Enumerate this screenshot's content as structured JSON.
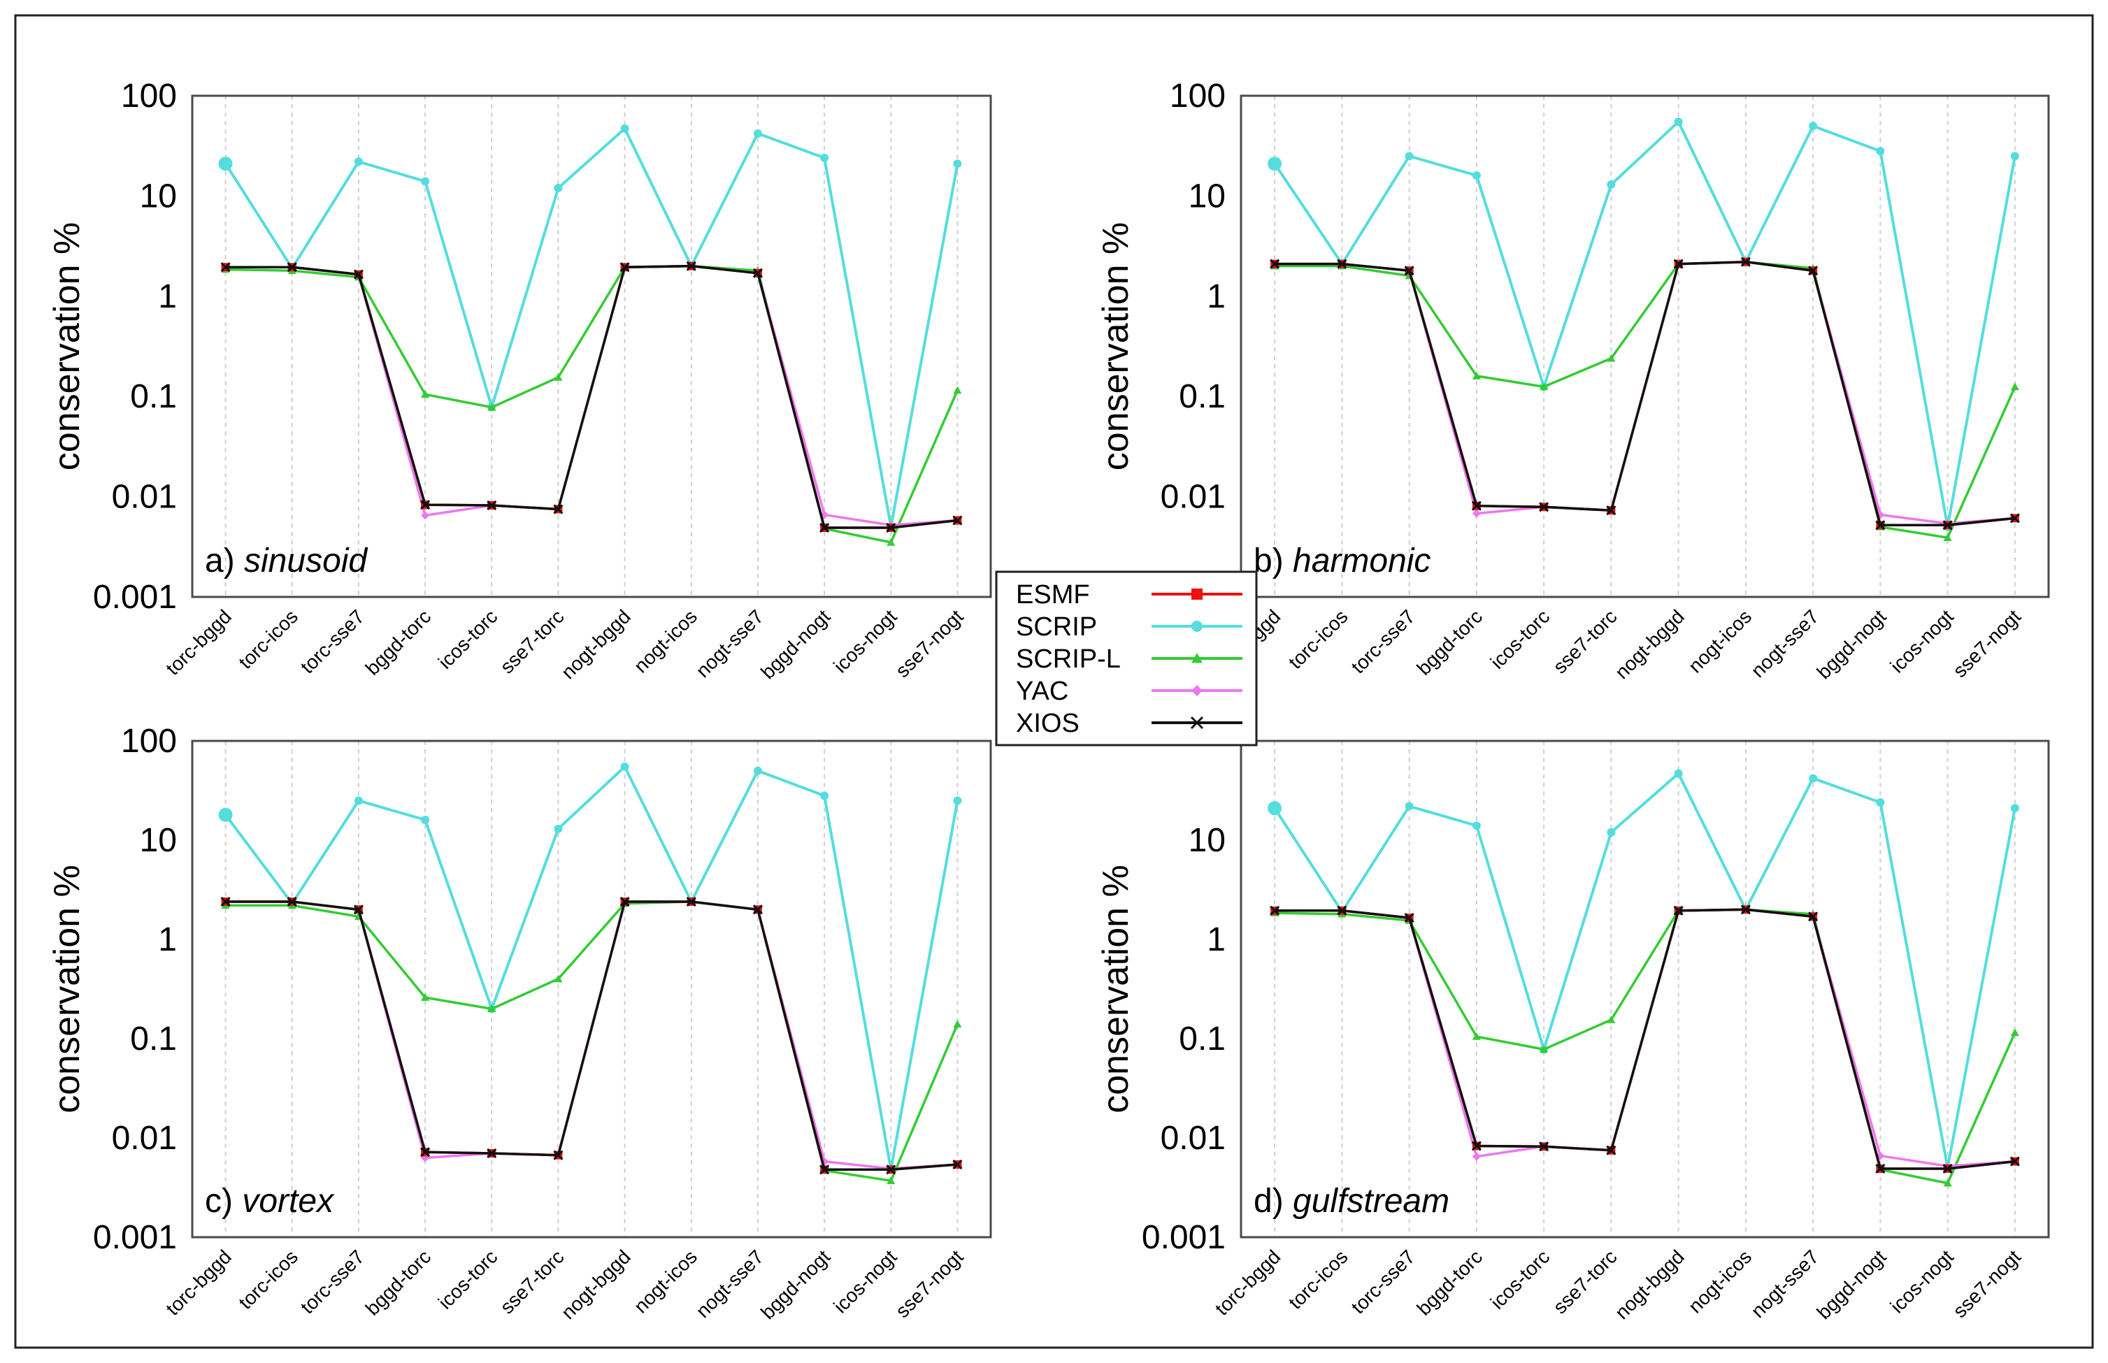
{
  "figure": {
    "legend": [
      {
        "name": "ESMF",
        "color": "#ee1111",
        "marker": "square"
      },
      {
        "name": "SCRIP",
        "color": "#55dddd",
        "marker": "circle"
      },
      {
        "name": "SCRIP-L",
        "color": "#33cc33",
        "marker": "triangle"
      },
      {
        "name": "YAC",
        "color": "#ee77ee",
        "marker": "diamond"
      },
      {
        "name": "XIOS",
        "color": "#111111",
        "marker": "x"
      }
    ]
  },
  "chart_data": [
    {
      "type": "line",
      "panel_label": "a)",
      "title": "sinusoid",
      "ylabel": "conservation %",
      "yscale": "log",
      "ylim": [
        0.001,
        100
      ],
      "yticks": [
        "0.001",
        "0.01",
        "0.1",
        "1",
        "10",
        "100"
      ],
      "categories": [
        "torc-bggd",
        "torc-icos",
        "torc-sse7",
        "bggd-torc",
        "icos-torc",
        "sse7-torc",
        "nogt-bggd",
        "nogt-icos",
        "nogt-sse7",
        "bggd-nogt",
        "icos-nogt",
        "sse7-nogt"
      ],
      "series": [
        {
          "name": "SCRIP",
          "values": [
            21,
            1.9,
            22,
            14,
            0.078,
            12,
            47,
            2.0,
            42,
            24,
            0.005,
            21
          ]
        },
        {
          "name": "SCRIP-L",
          "values": [
            1.85,
            1.8,
            1.55,
            0.105,
            0.078,
            0.155,
            1.95,
            2.0,
            1.8,
            0.0048,
            0.0035,
            0.115
          ]
        },
        {
          "name": "YAC",
          "values": [
            1.95,
            1.95,
            1.65,
            0.0065,
            0.0082,
            0.0075,
            1.95,
            2.0,
            1.7,
            0.0066,
            0.0052,
            0.0058
          ]
        },
        {
          "name": "ESMF",
          "values": [
            1.95,
            1.95,
            1.65,
            0.0083,
            0.0082,
            0.0075,
            1.95,
            2.0,
            1.7,
            0.0049,
            0.0049,
            0.0058
          ]
        },
        {
          "name": "XIOS",
          "values": [
            1.95,
            1.95,
            1.65,
            0.0083,
            0.0082,
            0.0075,
            1.95,
            2.0,
            1.7,
            0.0049,
            0.0049,
            0.0058
          ]
        }
      ]
    },
    {
      "type": "line",
      "panel_label": "b)",
      "title": "harmonic",
      "ylabel": "conservation %",
      "yscale": "log",
      "ylim": [
        0.001,
        100
      ],
      "yticks": [
        "0.001",
        "0.01",
        "0.1",
        "1",
        "10",
        "100"
      ],
      "categories": [
        "torc-bggd",
        "torc-icos",
        "torc-sse7",
        "bggd-torc",
        "icos-torc",
        "sse7-torc",
        "nogt-bggd",
        "nogt-icos",
        "nogt-sse7",
        "bggd-nogt",
        "icos-nogt",
        "sse7-nogt"
      ],
      "series": [
        {
          "name": "SCRIP",
          "values": [
            21,
            2.1,
            25,
            16,
            0.125,
            13,
            55,
            2.2,
            50,
            28,
            0.005,
            25
          ]
        },
        {
          "name": "SCRIP-L",
          "values": [
            2.0,
            2.0,
            1.6,
            0.16,
            0.125,
            0.24,
            2.1,
            2.2,
            1.9,
            0.005,
            0.0039,
            0.125
          ]
        },
        {
          "name": "YAC",
          "values": [
            2.1,
            2.1,
            1.8,
            0.0068,
            0.0079,
            0.0073,
            2.1,
            2.2,
            1.8,
            0.0066,
            0.0054,
            0.0061
          ]
        },
        {
          "name": "ESMF",
          "values": [
            2.1,
            2.1,
            1.8,
            0.0081,
            0.0079,
            0.0073,
            2.1,
            2.2,
            1.8,
            0.0052,
            0.0052,
            0.0061
          ]
        },
        {
          "name": "XIOS",
          "values": [
            2.1,
            2.1,
            1.8,
            0.0081,
            0.0079,
            0.0073,
            2.1,
            2.2,
            1.8,
            0.0052,
            0.0052,
            0.0061
          ]
        }
      ]
    },
    {
      "type": "line",
      "panel_label": "c)",
      "title": "vortex",
      "ylabel": "conservation %",
      "yscale": "log",
      "ylim": [
        0.001,
        100
      ],
      "yticks": [
        "0.001",
        "0.01",
        "0.1",
        "1",
        "10",
        "100"
      ],
      "categories": [
        "torc-bggd",
        "torc-icos",
        "torc-sse7",
        "bggd-torc",
        "icos-torc",
        "sse7-torc",
        "nogt-bggd",
        "nogt-icos",
        "nogt-sse7",
        "bggd-nogt",
        "icos-nogt",
        "sse7-nogt"
      ],
      "series": [
        {
          "name": "SCRIP",
          "values": [
            18,
            2.3,
            25,
            16,
            0.2,
            13,
            55,
            2.4,
            50,
            28,
            0.0048,
            25
          ]
        },
        {
          "name": "SCRIP-L",
          "values": [
            2.2,
            2.2,
            1.7,
            0.26,
            0.2,
            0.4,
            2.3,
            2.4,
            2.0,
            0.0047,
            0.0037,
            0.14
          ]
        },
        {
          "name": "YAC",
          "values": [
            2.4,
            2.4,
            2.0,
            0.0063,
            0.007,
            0.0067,
            2.4,
            2.4,
            2.0,
            0.0058,
            0.0049,
            0.0054
          ]
        },
        {
          "name": "ESMF",
          "values": [
            2.4,
            2.4,
            2.0,
            0.0072,
            0.007,
            0.0067,
            2.4,
            2.4,
            2.0,
            0.0048,
            0.0048,
            0.0054
          ]
        },
        {
          "name": "XIOS",
          "values": [
            2.4,
            2.4,
            2.0,
            0.0072,
            0.007,
            0.0067,
            2.4,
            2.4,
            2.0,
            0.0048,
            0.0048,
            0.0054
          ]
        }
      ]
    },
    {
      "type": "line",
      "panel_label": "d)",
      "title": "gulfstream",
      "ylabel": "conservation %",
      "yscale": "log",
      "ylim": [
        0.001,
        100
      ],
      "yticks": [
        "0.001",
        "0.01",
        "0.1",
        "1",
        "10"
      ],
      "categories": [
        "torc-bggd",
        "torc-icos",
        "torc-sse7",
        "bggd-torc",
        "icos-torc",
        "sse7-torc",
        "nogt-bggd",
        "nogt-icos",
        "nogt-sse7",
        "bggd-nogt",
        "icos-nogt",
        "sse7-nogt"
      ],
      "series": [
        {
          "name": "SCRIP",
          "values": [
            21,
            1.9,
            22,
            14,
            0.078,
            12,
            47,
            2.0,
            42,
            24,
            0.005,
            21
          ]
        },
        {
          "name": "SCRIP-L",
          "values": [
            1.85,
            1.8,
            1.55,
            0.105,
            0.078,
            0.155,
            1.95,
            2.0,
            1.8,
            0.0048,
            0.0035,
            0.115
          ]
        },
        {
          "name": "YAC",
          "values": [
            1.95,
            1.95,
            1.65,
            0.0065,
            0.0082,
            0.0075,
            1.95,
            2.0,
            1.7,
            0.0066,
            0.0052,
            0.0058
          ]
        },
        {
          "name": "ESMF",
          "values": [
            1.95,
            1.95,
            1.65,
            0.0083,
            0.0082,
            0.0075,
            1.95,
            2.0,
            1.7,
            0.0049,
            0.0049,
            0.0058
          ]
        },
        {
          "name": "XIOS",
          "values": [
            1.95,
            1.95,
            1.65,
            0.0083,
            0.0082,
            0.0075,
            1.95,
            2.0,
            1.7,
            0.0049,
            0.0049,
            0.0058
          ]
        }
      ]
    }
  ]
}
